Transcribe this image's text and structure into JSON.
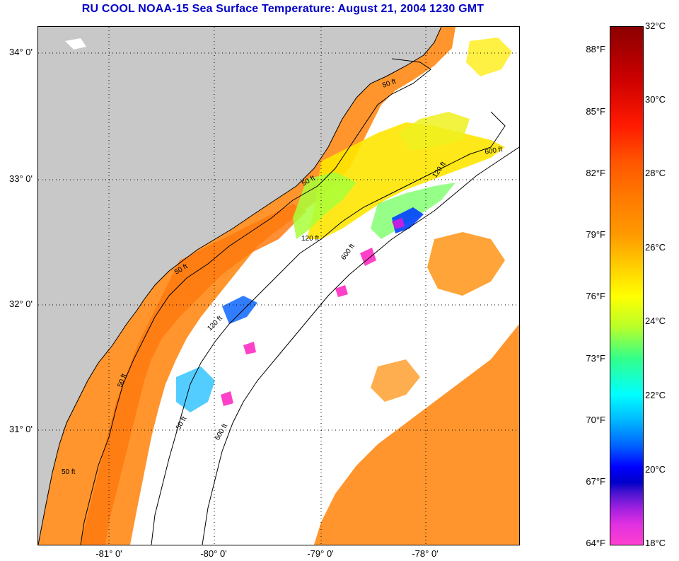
{
  "title": "RU COOL  NOAA-15  Sea Surface Temperature:  August 21, 2004 1230 GMT",
  "map": {
    "lat_labels": [
      "34° 0'",
      "33° 0'",
      "32° 0'",
      "31° 0'"
    ],
    "lon_labels": [
      "-81° 0'",
      "-80° 0'",
      "-79° 0'",
      "-78° 0'"
    ],
    "contours": [
      "50 ft",
      "120 ft",
      "600 ft"
    ],
    "colors": {
      "land": "#c8c8c8",
      "no_data": "#ffffff",
      "warm_water": "#ff8c1a",
      "cool_water": "#40a0ff",
      "coldest": "#ff40c8"
    }
  },
  "colorbar": {
    "fahrenheit": [
      "88°F",
      "85°F",
      "82°F",
      "79°F",
      "76°F",
      "73°F",
      "70°F",
      "67°F",
      "64°F"
    ],
    "celsius": [
      "32°C",
      "30°C",
      "28°C",
      "26°C",
      "24°C",
      "22°C",
      "20°C",
      "18°C"
    ],
    "range_c": [
      18,
      32
    ]
  }
}
